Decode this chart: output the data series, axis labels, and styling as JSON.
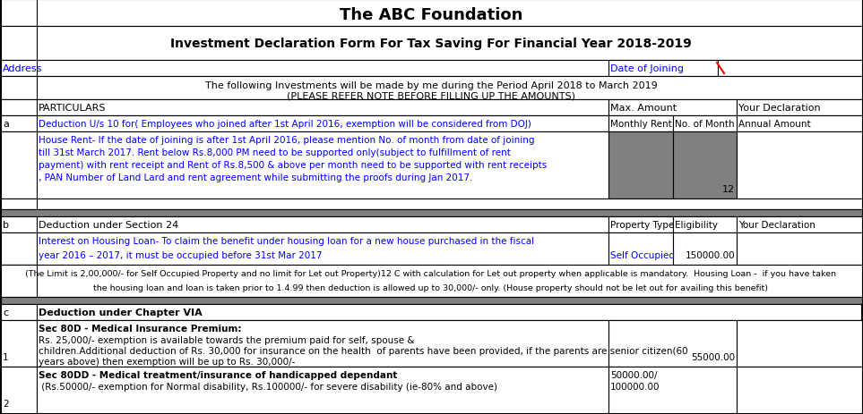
{
  "title": "The ABC Foundation",
  "subtitle": "Investment Declaration Form For Tax Saving For Financial Year 2018-2019",
  "address_label": "Address",
  "date_of_joining_label": "Date of Joining",
  "note_line1": "The following Investments will be made by me during the Period April 2018 to March 2019",
  "note_line2": "(PLEASE REFER NOTE BEFORE FILLING UP THE AMOUNTS)",
  "particulars_header": "PARTICULARS",
  "max_amount_header": "Max. Amount",
  "your_declaration_header": "Your Declaration",
  "section_a_label": "a",
  "section_a_title": "Deduction U/s 10 for( Employees who joined after 1st April 2016, exemption will be considered from DOJ)",
  "section_a_col2": "Monthly Rent",
  "section_a_col3": "No. of Month",
  "section_a_col4": "Annual Amount",
  "section_a_lines": [
    "House Rent- If the date of joining is after 1st April 2016, please mention No. of month from date of joining",
    "till 31st March 2017. Rent below Rs.8,000 PM need to be supported only(subject to fulfillment of rent",
    "payment) with rent receipt and Rent of Rs.8,500 & above per month need to be supported with rent receipts",
    ", PAN Number of Land Lard and rent agreement while submitting the proofs during Jan 2017."
  ],
  "section_a_value": "12",
  "section_b_label": "b",
  "section_b_title": "Deduction under Section 24",
  "section_b_col2": "Property Type",
  "section_b_col3": "Eligibility",
  "section_b_col4": "Your Declaration",
  "section_b_lines": [
    "Interest on Housing Loan- To claim the benefit under housing loan for a new house purchased in the fiscal",
    "year 2016 – 2017, it must be occupied before 31st Mar 2017"
  ],
  "section_b_property": "Self Occupied",
  "section_b_value": "150000.00",
  "section_b_note_lines": [
    "(The Limit is 2,00,000/- for Self Occupied Property and no limit for Let out Property)12 C with calculation for Let out property when applicable is mandatory.  Housing Loan -  if you have taken",
    "the housing loan and loan is taken prior to 1.4.99 then deduction is allowed up to 30,000/- only. (House property should not be let out for availing this benefit)"
  ],
  "section_c_label": "c",
  "section_c_title": "Deduction under Chapter VIA",
  "sec80d_num": "1",
  "sec80d_title": "Sec 80D - Medical Insurance Premium:",
  "sec80d_lines": [
    "Rs. 25,000/- exemption is available towards the premium paid for self, spouse &",
    "children.Additional deduction of Rs. 30,000 for insurance on the health  of parents have been provided, if the parents are senior citizen(60",
    "years above) then exemption will be up to Rs. 30,000/-"
  ],
  "sec80d_value": "55000.00",
  "sec80dd_num": "2",
  "sec80dd_title": "Sec 80DD - Medical treatment/insurance of handicapped dependant",
  "sec80dd_detail": " (Rs.50000/- exemption for Normal disability, Rs.100000/- for severe disability (ie-80% and above)",
  "sec80dd_value1": "50000.00/",
  "sec80dd_value2": "100000.00",
  "bg_color": "#ffffff",
  "gray_row_bg": "#808080",
  "gray_cell_bg": "#808080",
  "border_color": "#000000",
  "text_color": "#000000",
  "blue_text": "#0000ff",
  "title_fontsize": 13,
  "subtitle_fontsize": 10,
  "body_fontsize": 7.5
}
